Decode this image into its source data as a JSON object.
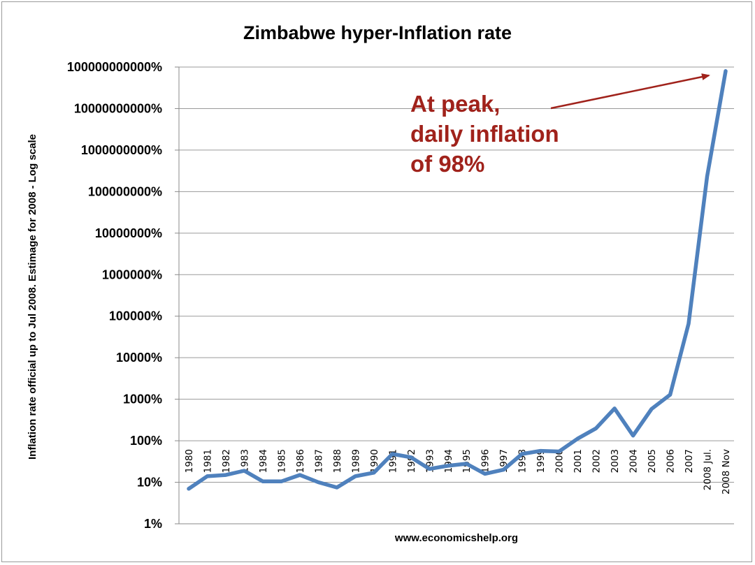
{
  "chart_data": {
    "type": "line",
    "title": "Zimbabwe hyper-Inflation rate",
    "ylabel": "Inflation rate official up to Jul 2008. Estimage for 2008 - Log scale",
    "xlabel": "www.economicshelp.org",
    "y_scale": "log",
    "grid": true,
    "y_tick_labels": [
      "1%",
      "10%",
      "100%",
      "1000%",
      "10000%",
      "100000%",
      "1000000%",
      "10000000%",
      "100000000%",
      "1000000000%",
      "10000000000%",
      "100000000000%"
    ],
    "ylim": [
      1,
      100000000000
    ],
    "categories": [
      "1980",
      "1981",
      "1982",
      "1983",
      "1984",
      "1985",
      "1986",
      "1987",
      "1988",
      "1989",
      "1990",
      "1991",
      "1992",
      "1993",
      "1994",
      "1995",
      "1996",
      "1997",
      "1998",
      "1999",
      "2000",
      "2001",
      "2002",
      "2003",
      "2004",
      "2005",
      "2006",
      "2007",
      "2008 Jul.",
      "2008 Nov"
    ],
    "series": [
      {
        "color": "#4f81bd",
        "values": [
          7,
          14,
          15,
          19,
          10.5,
          10.5,
          15,
          10,
          7.5,
          14,
          17,
          48,
          40,
          21,
          25,
          28,
          16,
          20,
          48,
          57,
          55,
          112,
          199,
          599,
          133,
          585,
          1281,
          66212,
          231000000,
          80000000000
        ]
      }
    ],
    "annotation": {
      "lines": [
        "At peak,",
        "daily inflation",
        "of 98%"
      ],
      "color": "#a0221b",
      "points_to": "2008 Nov"
    }
  }
}
